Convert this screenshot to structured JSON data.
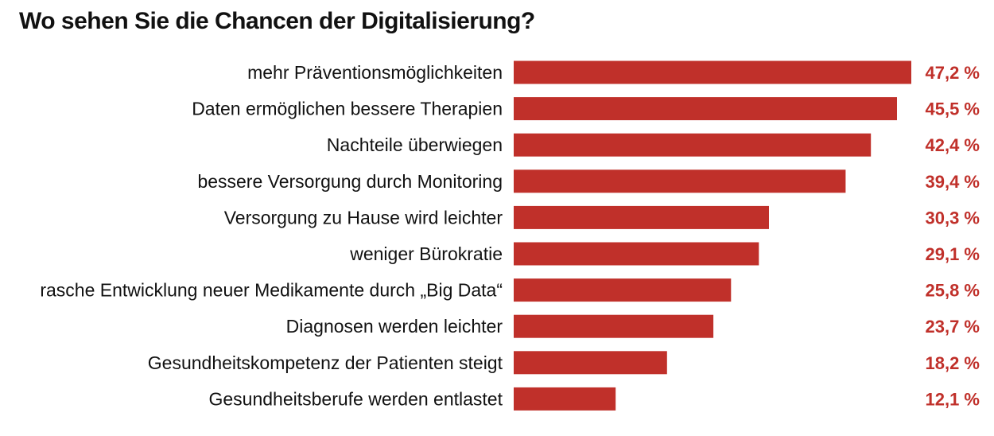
{
  "chart_data": {
    "type": "bar",
    "orientation": "horizontal",
    "title": "Wo sehen Sie die Chancen der Digitalisierung?",
    "categories": [
      "mehr Präventionsmöglichkeiten",
      "Daten ermöglichen bessere Therapien",
      "Nachteile überwiegen",
      "bessere Versorgung durch Monitoring",
      "Versorgung zu Hause wird leichter",
      "weniger Bürokratie",
      "rasche Entwicklung neuer Medikamente durch „Big Data“",
      "Diagnosen werden leichter",
      "Gesundheitskompetenz der Patienten steigt",
      "Gesundheitsberufe werden entlastet"
    ],
    "values": [
      47.2,
      45.5,
      42.4,
      39.4,
      30.3,
      29.1,
      25.8,
      23.7,
      18.2,
      12.1
    ],
    "value_labels": [
      "47,2 %",
      "45,5 %",
      "42,4 %",
      "39,4 %",
      "30,3 %",
      "29,1 %",
      "25,8 %",
      "23,7 %",
      "18,2 %",
      "12,1 %"
    ],
    "xlabel": "",
    "ylabel": "",
    "xlim": [
      0,
      47.2
    ],
    "grid": false,
    "legend": "none",
    "bar_color": "#c0302a",
    "value_label_color": "#c0302a"
  }
}
